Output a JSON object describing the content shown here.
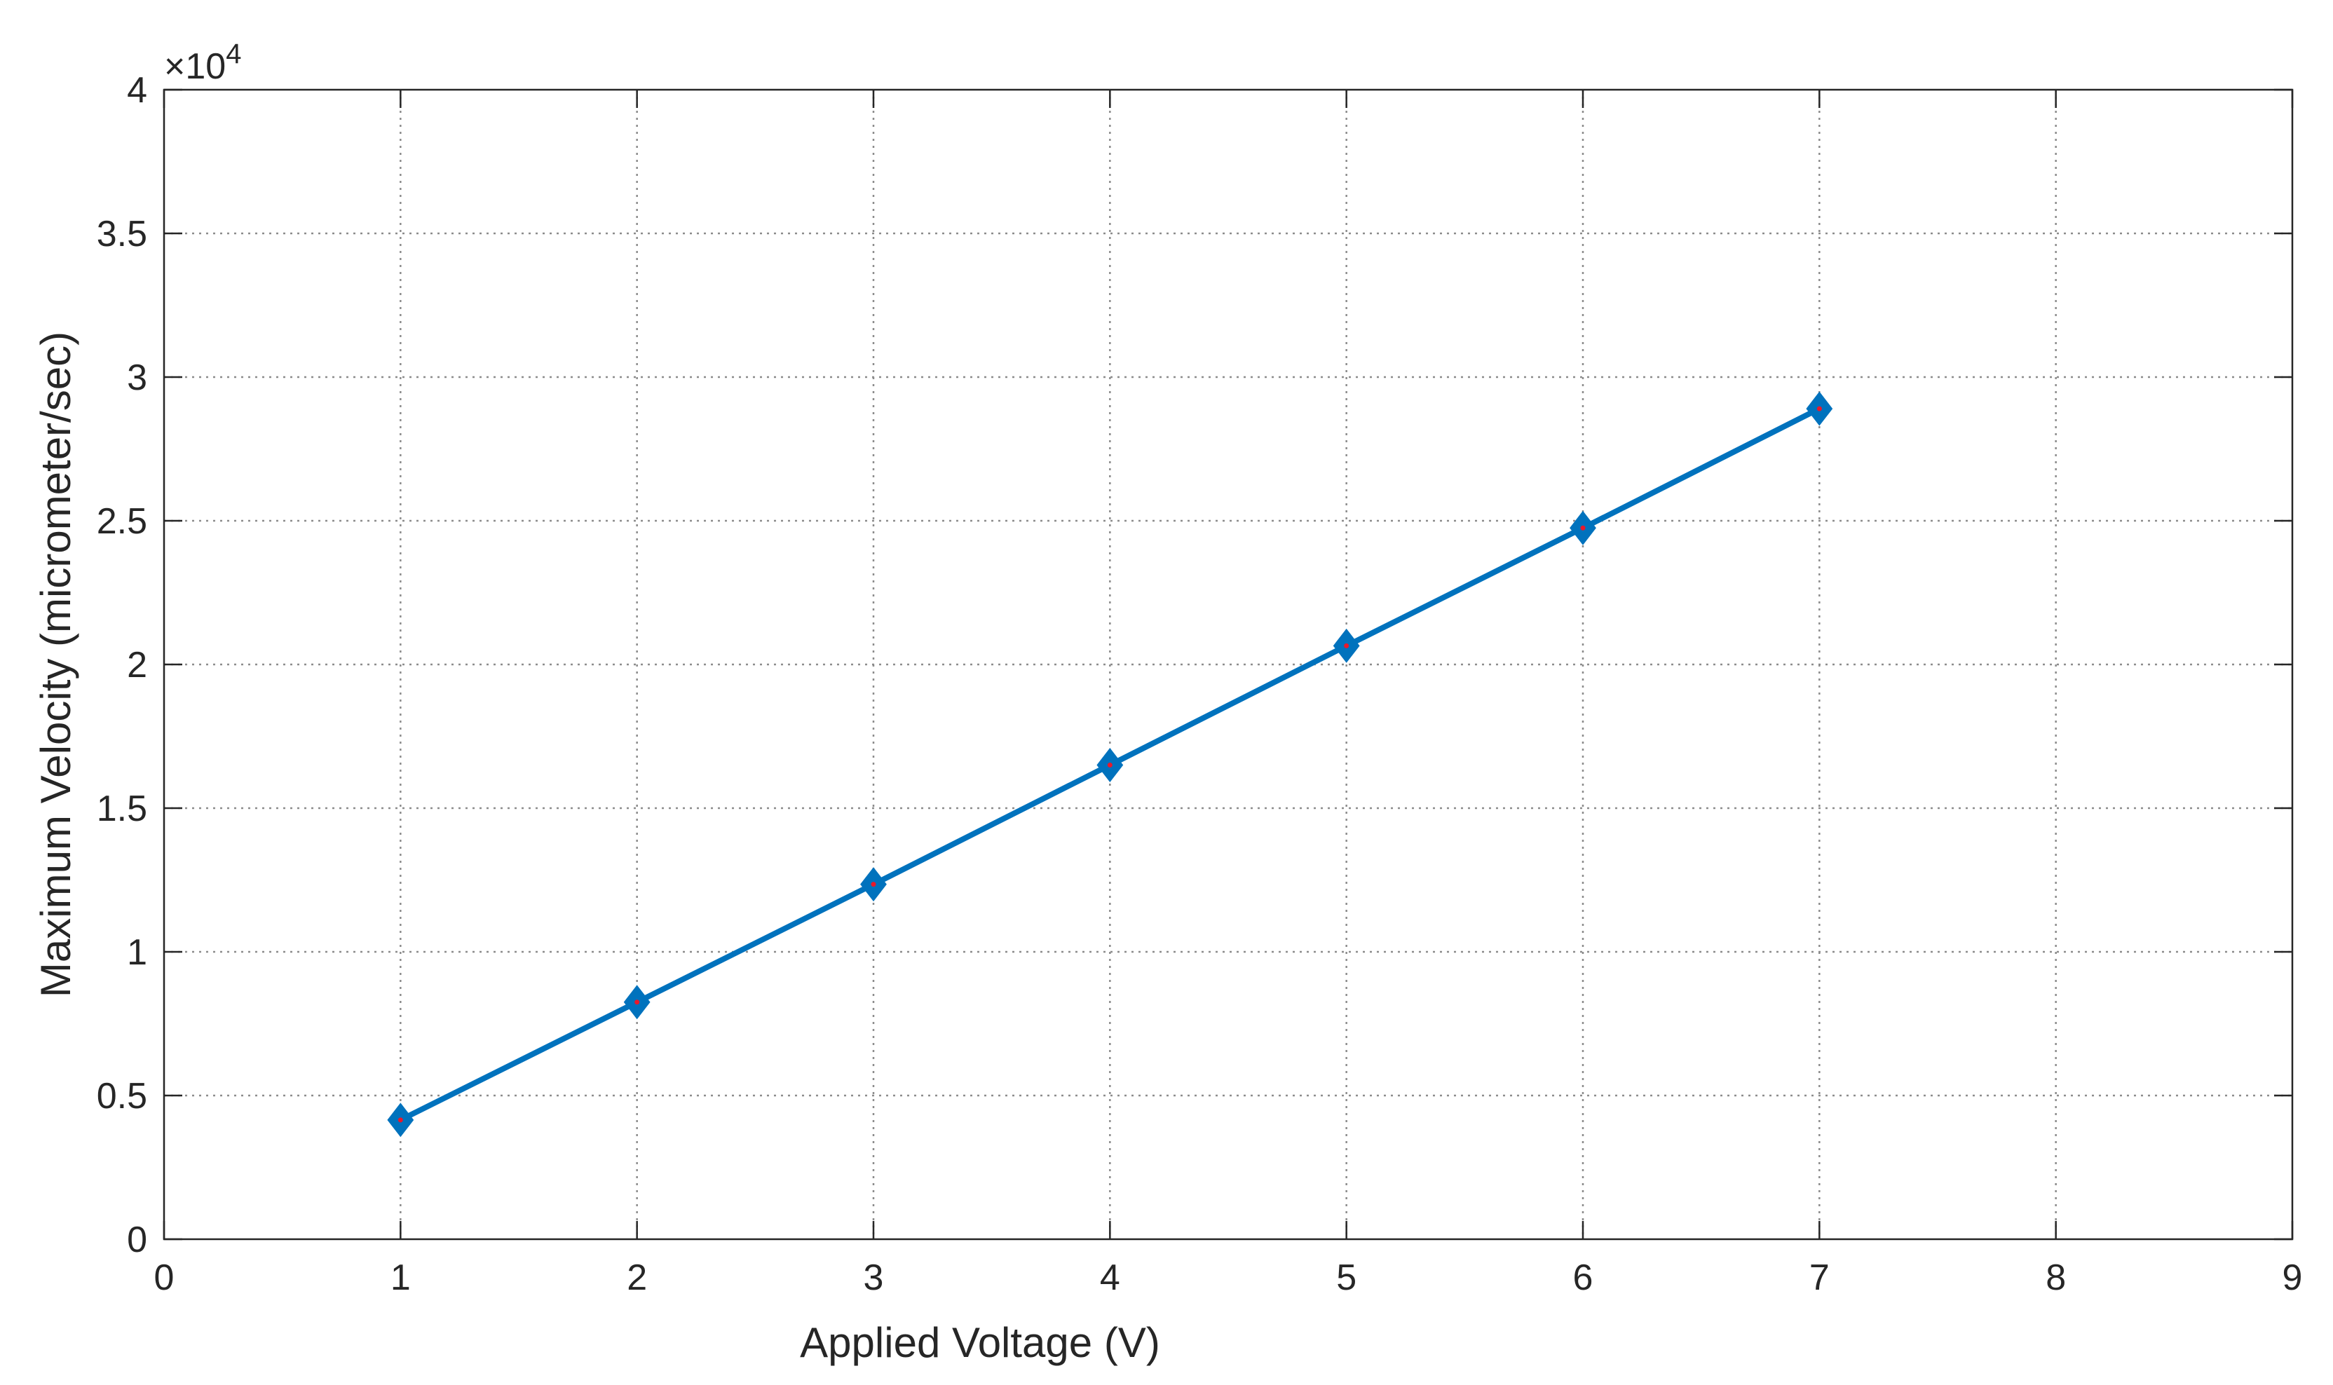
{
  "chart_data": {
    "type": "line",
    "title": "",
    "xlabel": "Applied Voltage (V)",
    "ylabel": "Maximum Velocity (micrometer/sec)",
    "y_exponent_label": "×10",
    "y_exponent_power": "4",
    "xlim": [
      0,
      9
    ],
    "ylim": [
      0,
      40000
    ],
    "x_ticks": [
      0,
      1,
      2,
      3,
      4,
      5,
      6,
      7,
      8,
      9
    ],
    "x_tick_labels": [
      "0",
      "1",
      "2",
      "3",
      "4",
      "5",
      "6",
      "7",
      "8",
      "9"
    ],
    "y_ticks": [
      0,
      5000,
      10000,
      15000,
      20000,
      25000,
      30000,
      35000,
      40000
    ],
    "y_tick_labels": [
      "0",
      "0.5",
      "1",
      "1.5",
      "2",
      "2.5",
      "3",
      "3.5",
      "4"
    ],
    "grid": true,
    "legend": "none",
    "series": [
      {
        "x": [
          1,
          2,
          3,
          4,
          5,
          6,
          7
        ],
        "y": [
          4150,
          8250,
          12350,
          16500,
          20650,
          24750,
          28900
        ],
        "line_color": "#0072bd",
        "marker": "diamond",
        "marker_fill": "#0072bd",
        "marker_center_color": "#e8192c"
      }
    ]
  }
}
